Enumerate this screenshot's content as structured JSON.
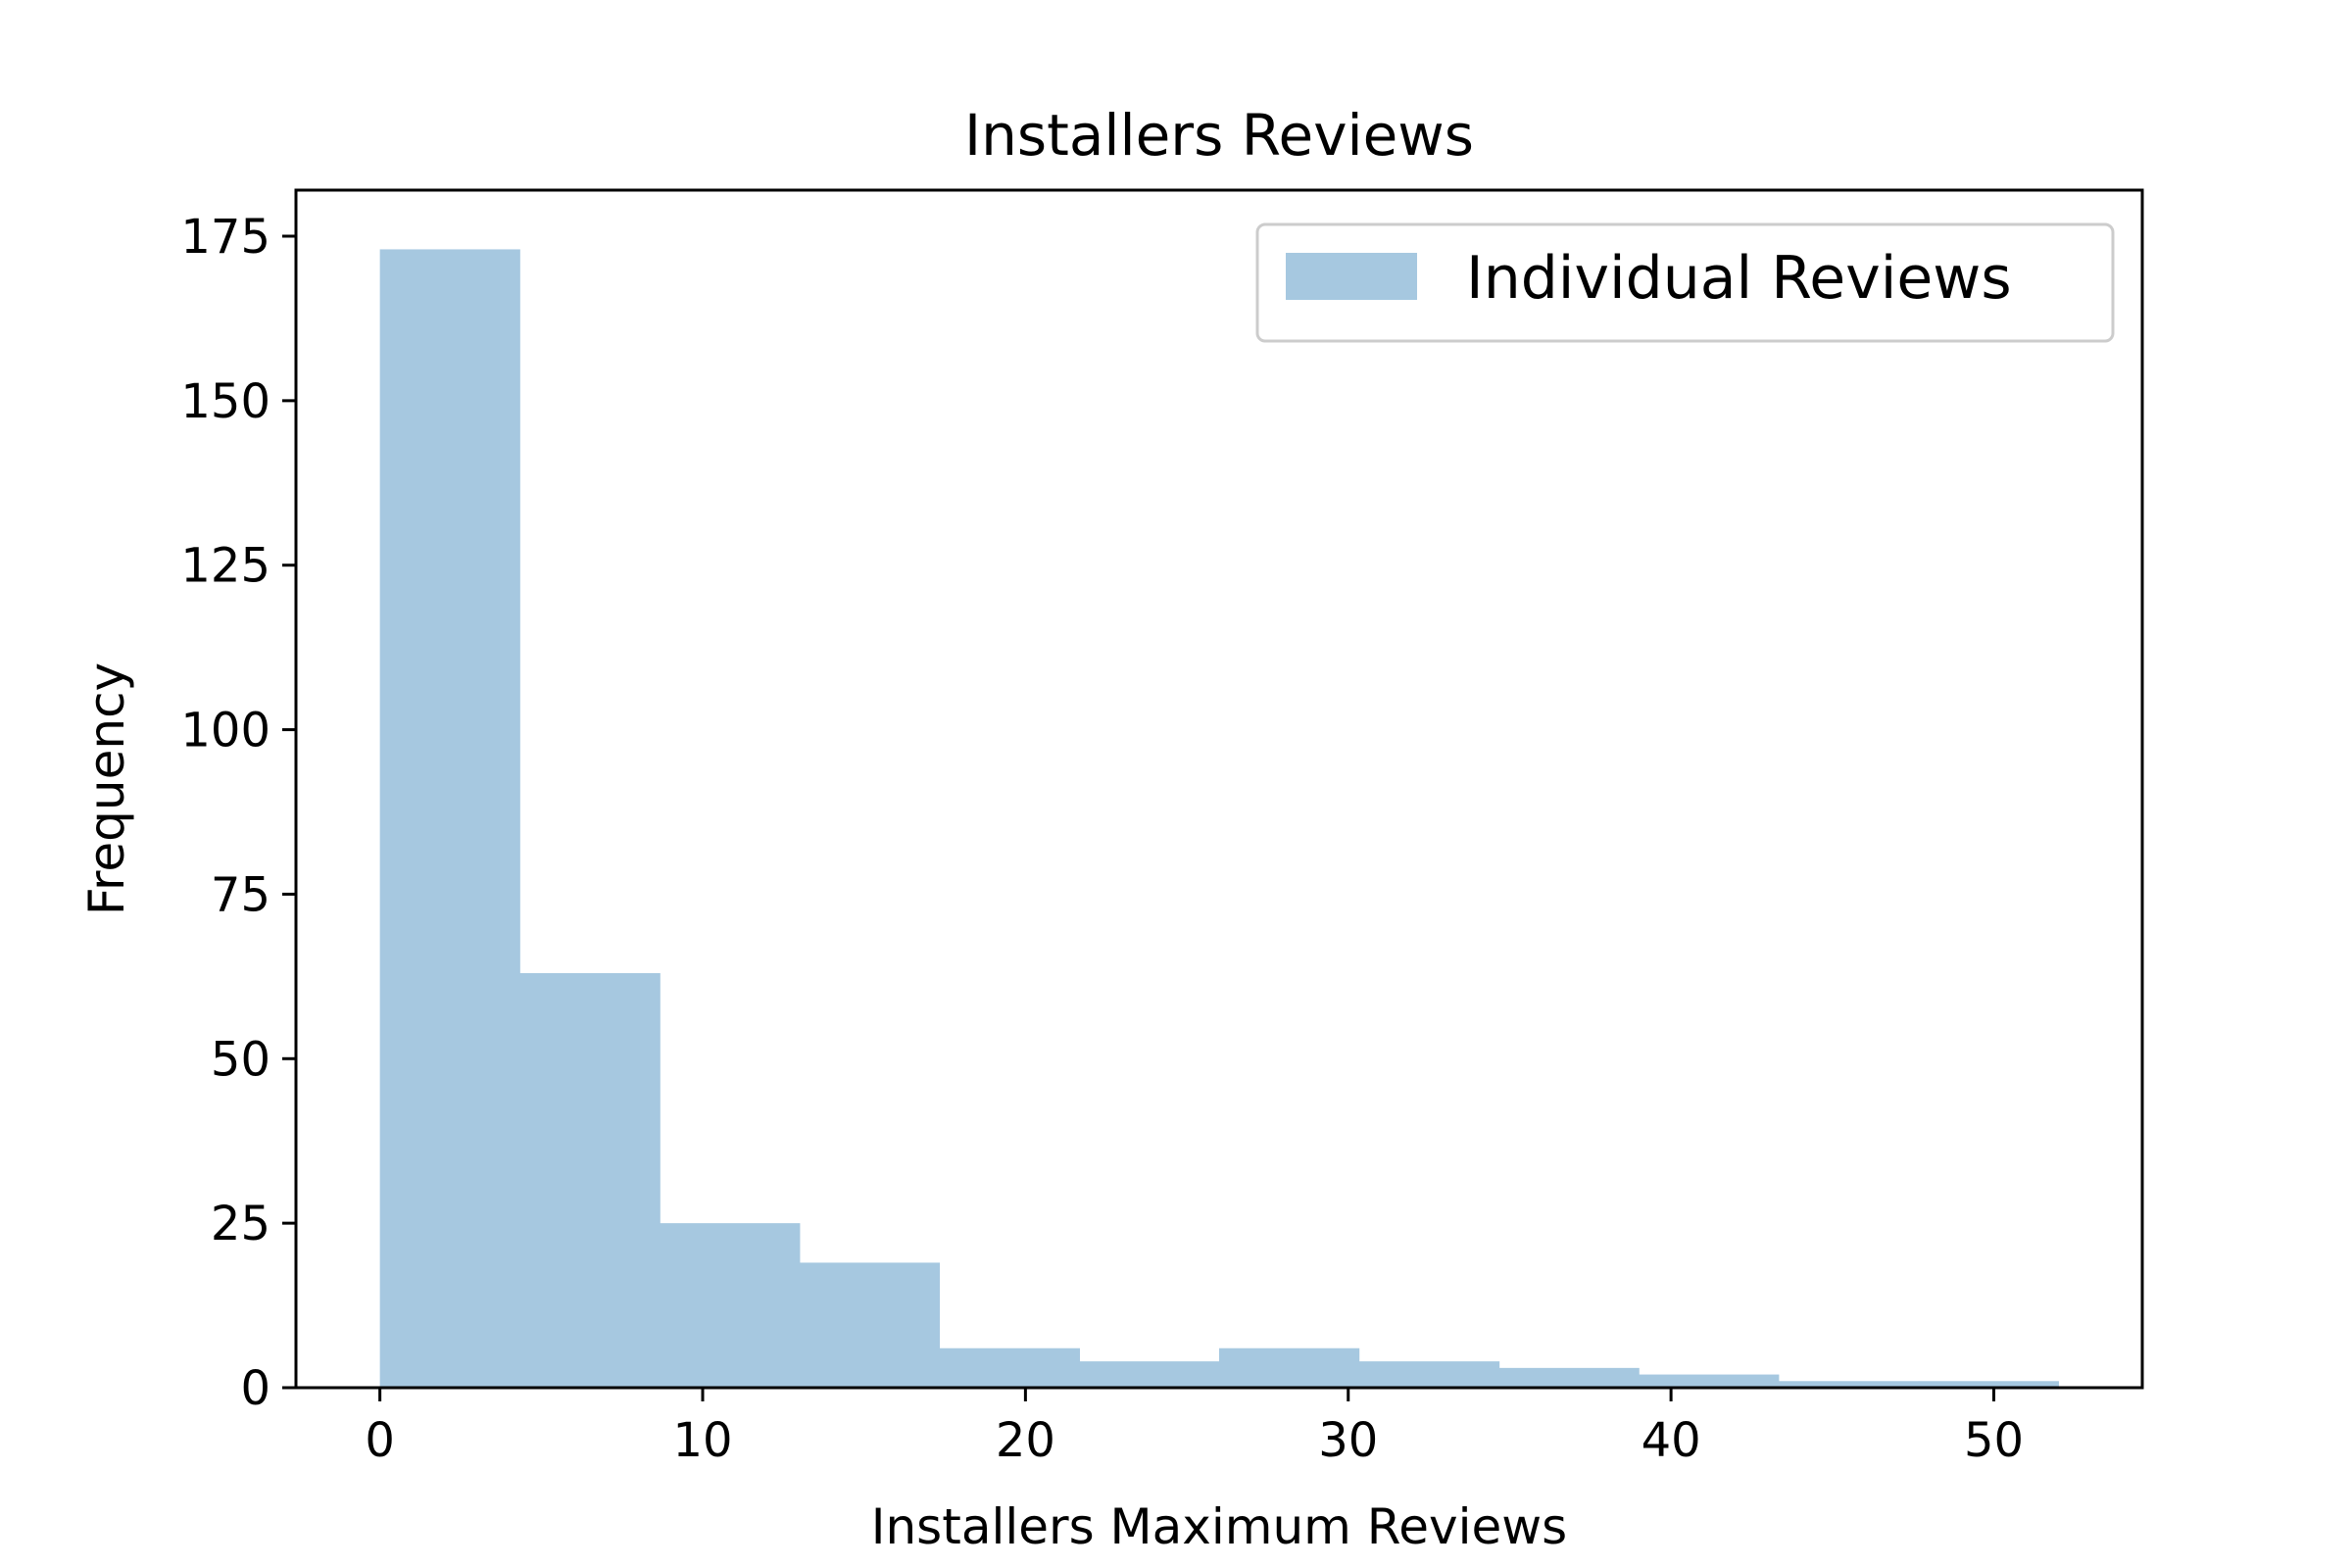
{
  "chart_data": {
    "type": "bar",
    "title": "Installers Reviews",
    "xlabel": "Installers Maximum Reviews",
    "ylabel": "Frequency",
    "xlim": [
      -2.6,
      54.6
    ],
    "ylim": [
      0,
      182
    ],
    "xticks": [
      0,
      10,
      20,
      30,
      40,
      50
    ],
    "yticks": [
      0,
      25,
      50,
      75,
      100,
      125,
      150,
      175
    ],
    "grid": false,
    "legend": {
      "position": "top-right",
      "entries": [
        "Individual Reviews"
      ]
    },
    "bin_edges": [
      0,
      4.33,
      8.67,
      13,
      17.33,
      21.67,
      26,
      30.33,
      34.67,
      39,
      43.33,
      47.67,
      52
    ],
    "series": [
      {
        "name": "Individual Reviews",
        "color": "#a6c8e0",
        "values": [
          173,
          63,
          25,
          19,
          6,
          4,
          6,
          4,
          3,
          2,
          1,
          1
        ]
      }
    ]
  }
}
